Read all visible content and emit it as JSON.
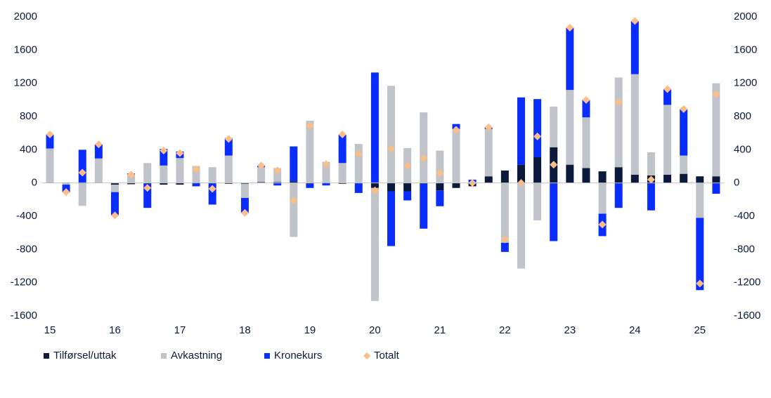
{
  "chart_data": {
    "type": "bar",
    "categories": [
      "15",
      null,
      null,
      null,
      "16",
      null,
      null,
      null,
      "17",
      null,
      null,
      null,
      "18",
      null,
      null,
      null,
      "19",
      null,
      null,
      null,
      "20",
      null,
      null,
      null,
      "21",
      null,
      null,
      null,
      "22",
      null,
      null,
      null,
      "23",
      null,
      null,
      null,
      "24",
      null,
      null,
      null,
      "25",
      null
    ],
    "series": [
      {
        "name": "Tilførsel/uttak",
        "type": "bar",
        "color": "#0b1a3c",
        "values": [
          5,
          5,
          -5,
          5,
          -20,
          -15,
          -10,
          -20,
          -20,
          5,
          0,
          -10,
          -10,
          10,
          10,
          20,
          -10,
          5,
          -10,
          0,
          -60,
          -100,
          -100,
          -10,
          -90,
          -60,
          -40,
          80,
          150,
          220,
          310,
          430,
          220,
          180,
          140,
          190,
          100,
          90,
          100,
          110,
          80,
          80
        ]
      },
      {
        "name": "Avkastning",
        "type": "bar",
        "color": "#c1c3ca",
        "values": [
          410,
          -20,
          -270,
          290,
          -90,
          100,
          240,
          210,
          300,
          200,
          190,
          330,
          -170,
          180,
          170,
          -650,
          750,
          250,
          240,
          470,
          -1360,
          1170,
          420,
          850,
          390,
          650,
          10,
          570,
          -720,
          -1030,
          -450,
          490,
          900,
          610,
          -370,
          1080,
          1210,
          280,
          840,
          220,
          -420,
          1120
        ]
      },
      {
        "name": "Kronekurs",
        "type": "bar",
        "color": "#0a2dff",
        "values": [
          170,
          -95,
          400,
          170,
          -280,
          15,
          -290,
          200,
          80,
          -40,
          -260,
          210,
          -180,
          20,
          -30,
          420,
          -50,
          -30,
          340,
          -120,
          1330,
          -660,
          -110,
          -540,
          -190,
          60,
          30,
          20,
          -110,
          810,
          700,
          -700,
          750,
          210,
          -270,
          -300,
          640,
          -330,
          190,
          560,
          -870,
          -130
        ]
      },
      {
        "name": "Totalt",
        "type": "scatter",
        "color": "#fbbe87",
        "values": [
          585,
          -110,
          125,
          465,
          -390,
          100,
          -60,
          390,
          360,
          165,
          -70,
          530,
          -360,
          210,
          150,
          -210,
          690,
          225,
          585,
          350,
          -90,
          410,
          210,
          300,
          120,
          640,
          0,
          670,
          -680,
          0,
          560,
          220,
          1870,
          1000,
          -500,
          970,
          1950,
          40,
          1130,
          890,
          -1210,
          1070
        ]
      }
    ],
    "ylim": [
      -1600,
      2000
    ],
    "yticks": [
      -1600,
      -1200,
      -800,
      -400,
      0,
      400,
      800,
      1200,
      1600,
      2000
    ],
    "y2lim": [
      -1600,
      2000
    ],
    "y2ticks": [
      -1600,
      -1200,
      -800,
      -400,
      0,
      400,
      800,
      1200,
      1600,
      2000
    ],
    "zero_line": true
  }
}
